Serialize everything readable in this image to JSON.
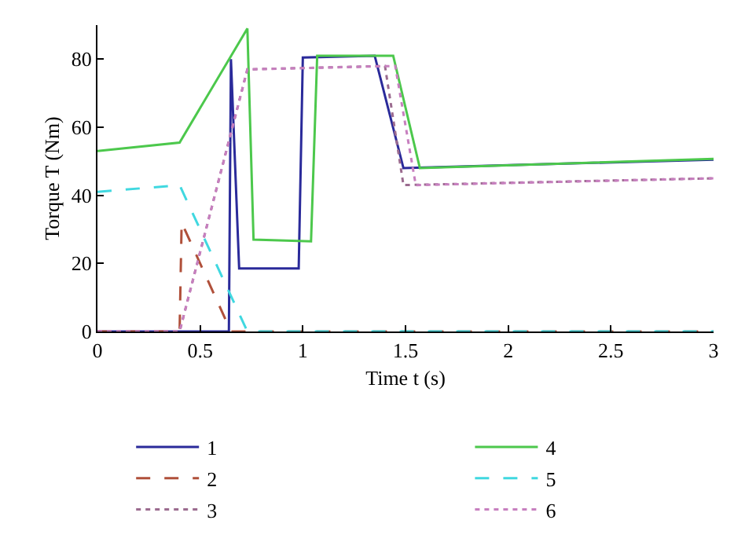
{
  "chart_data": {
    "type": "line",
    "xlabel": "Time t (s)",
    "ylabel": "Torque T (Nm)",
    "xlim": [
      0,
      3
    ],
    "xticks": [
      0,
      0.5,
      1,
      1.5,
      2,
      2.5,
      3
    ],
    "ylim": [
      0,
      90
    ],
    "yticks": [
      0,
      20,
      40,
      60,
      80
    ],
    "legend": "bottom",
    "series": [
      {
        "name": "1",
        "color": "#2a2a9a",
        "line_style": "solid",
        "x": [
          0,
          0.64,
          0.65,
          0.69,
          0.98,
          1.0,
          1.35,
          1.49,
          3.0
        ],
        "values": [
          0,
          0,
          80,
          18.5,
          18.5,
          80.5,
          81,
          48,
          50.5
        ]
      },
      {
        "name": "2",
        "color": "#b0503a",
        "line_style": "dashed",
        "x": [
          0,
          0.4,
          0.41,
          0.65,
          3.0
        ],
        "values": [
          0,
          0,
          32,
          0,
          0
        ]
      },
      {
        "name": "3",
        "color": "#9b6b8f",
        "line_style": "dotted",
        "x": [
          0,
          0.4,
          0.73,
          1.4,
          1.49,
          3.0
        ],
        "values": [
          0,
          0,
          77,
          78,
          43,
          45
        ]
      },
      {
        "name": "4",
        "color": "#4cc84c",
        "line_style": "solid",
        "x": [
          0,
          0.4,
          0.73,
          0.76,
          1.04,
          1.07,
          1.44,
          1.57,
          3.0
        ],
        "values": [
          53,
          55.5,
          89,
          27,
          26.5,
          81,
          81,
          48,
          50.7
        ]
      },
      {
        "name": "5",
        "color": "#40d8e0",
        "line_style": "dashed",
        "x": [
          0,
          0.4,
          0.73,
          3.0
        ],
        "values": [
          41,
          43,
          0,
          0
        ]
      },
      {
        "name": "6",
        "color": "#c77fbf",
        "line_style": "dotted",
        "x": [
          0,
          0.4,
          0.73,
          1.45,
          1.55,
          3.0
        ],
        "values": [
          0,
          0,
          77,
          78,
          43,
          45
        ]
      }
    ]
  }
}
